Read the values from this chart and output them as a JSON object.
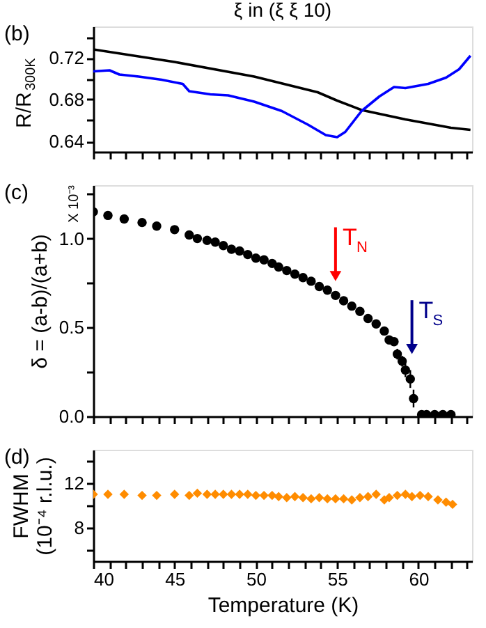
{
  "chart_data": [
    {
      "type": "line",
      "title": "ξ in (ξ ξ 10)",
      "ylabel": "R/R$_{300K}$",
      "annotations": [
        "(b)"
      ],
      "xlim": [
        40,
        63.3
      ],
      "ylim": [
        0.63,
        0.75
      ],
      "tick_labels": "y",
      "grid": false,
      "line_style": "solid",
      "xticks": [
        40,
        {
          "value": 41,
          "label": null
        },
        {
          "value": 42,
          "label": null
        },
        {
          "value": 43,
          "label": null
        },
        {
          "value": 44,
          "label": null
        },
        45,
        {
          "value": 46,
          "label": null
        },
        {
          "value": 47,
          "label": null
        },
        {
          "value": 48,
          "label": null
        },
        {
          "value": 49,
          "label": null
        },
        50,
        {
          "value": 51,
          "label": null
        },
        {
          "value": 52,
          "label": null
        },
        {
          "value": 53,
          "label": null
        },
        {
          "value": 54,
          "label": null
        },
        55,
        {
          "value": 56,
          "label": null
        },
        {
          "value": 57,
          "label": null
        },
        {
          "value": 58,
          "label": null
        },
        {
          "value": 59,
          "label": null
        },
        60,
        {
          "value": 61,
          "label": null
        },
        {
          "value": 62,
          "label": null
        },
        {
          "value": 63,
          "label": null
        }
      ],
      "yticks": [
        0.64,
        {
          "value": 0.66,
          "label": null
        },
        0.68,
        {
          "value": 0.7,
          "label": null
        },
        0.72,
        {
          "value": 0.74,
          "label": null
        }
      ],
      "series": [
        {
          "color": "#000000",
          "x": [
            40,
            45,
            49.9,
            53.8,
            55,
            56.5,
            59.2,
            62,
            63.2
          ],
          "values": [
            0.728,
            0.716,
            0.702,
            0.687,
            0.679,
            0.67,
            0.661,
            0.653,
            0.651
          ]
        },
        {
          "color": "#0000ff",
          "x": [
            40,
            41,
            41.6,
            42.8,
            44.2,
            45.5,
            45.9,
            47.2,
            48.3,
            49.9,
            51.6,
            53.2,
            54.3,
            55,
            55.5,
            56.5,
            57.6,
            58.5,
            59.2,
            60.6,
            61.7,
            62.5,
            63.2
          ],
          "values": [
            0.707,
            0.708,
            0.704,
            0.702,
            0.699,
            0.695,
            0.688,
            0.685,
            0.684,
            0.678,
            0.669,
            0.656,
            0.646,
            0.644,
            0.649,
            0.669,
            0.683,
            0.692,
            0.691,
            0.695,
            0.701,
            0.709,
            0.722
          ]
        }
      ]
    },
    {
      "type": "scatter",
      "ylabel": "δ = (a-b)/(a+b)",
      "annotations": [
        "(c)",
        "X 10⁻³",
        {
          "text": "T$_{N}$",
          "x": 54.9,
          "y": 0.75
        },
        {
          "text": "T$_{S}$",
          "x": 59.6,
          "y": 0.34
        }
      ],
      "xlim": [
        40,
        63.3
      ],
      "ylim": [
        0,
        1.3
      ],
      "tick_labels": "y",
      "grid": false,
      "marker": "circle",
      "xticks": [
        40,
        {
          "value": 41,
          "label": null
        },
        {
          "value": 42,
          "label": null
        },
        {
          "value": 43,
          "label": null
        },
        {
          "value": 44,
          "label": null
        },
        45,
        {
          "value": 46,
          "label": null
        },
        {
          "value": 47,
          "label": null
        },
        {
          "value": 48,
          "label": null
        },
        {
          "value": 49,
          "label": null
        },
        50,
        {
          "value": 51,
          "label": null
        },
        {
          "value": 52,
          "label": null
        },
        {
          "value": 53,
          "label": null
        },
        {
          "value": 54,
          "label": null
        },
        55,
        {
          "value": 56,
          "label": null
        },
        {
          "value": 57,
          "label": null
        },
        {
          "value": 58,
          "label": null
        },
        {
          "value": 59,
          "label": null
        },
        60,
        {
          "value": 61,
          "label": null
        },
        {
          "value": 62,
          "label": null
        },
        {
          "value": 63,
          "label": null
        }
      ],
      "yticks": [
        {
          "value": 0,
          "label": "0.0"
        },
        {
          "value": 0.25,
          "label": null
        },
        0.5,
        {
          "value": 0.75,
          "label": null
        },
        {
          "value": 1,
          "label": "1.0"
        },
        {
          "value": 1.25,
          "label": null
        }
      ],
      "series": [
        {
          "color": "#000000",
          "x": [
            40,
            40.9,
            41.9,
            43,
            43.9,
            45,
            45.9,
            46.4,
            47,
            47.5,
            48,
            48.5,
            49,
            49.5,
            50,
            50.5,
            51,
            51.4,
            51.9,
            52.4,
            52.9,
            53.4,
            53.9,
            54.4,
            54.9,
            55.4,
            55.9,
            56.4,
            56.9,
            57.4,
            57.9,
            58.2,
            58.5,
            58.7,
            59,
            59.2,
            59.5,
            59.7,
            60.2,
            60.5,
            61,
            61.5,
            62
          ],
          "values": [
            1.15,
            1.13,
            1.11,
            1.09,
            1.07,
            1.05,
            1.02,
            1.0,
            0.99,
            0.98,
            0.96,
            0.94,
            0.93,
            0.91,
            0.89,
            0.88,
            0.86,
            0.84,
            0.82,
            0.8,
            0.78,
            0.76,
            0.73,
            0.71,
            0.68,
            0.65,
            0.62,
            0.59,
            0.55,
            0.52,
            0.48,
            0.43,
            0.42,
            0.35,
            0.31,
            0.26,
            0.21,
            0.1,
            0.01,
            0.01,
            0.01,
            0.01,
            0.01
          ],
          "errors": [
            null,
            null,
            null,
            null,
            null,
            null,
            null,
            null,
            null,
            null,
            null,
            null,
            null,
            null,
            null,
            null,
            null,
            null,
            null,
            null,
            null,
            null,
            null,
            null,
            null,
            null,
            null,
            null,
            null,
            null,
            null,
            null,
            null,
            0.03,
            0.03,
            0.04,
            0.05,
            0.05,
            null,
            null,
            null,
            null,
            null
          ]
        }
      ]
    },
    {
      "type": "scatter",
      "ylabel": "FWHM\n(10⁻⁴ r.l.u.)",
      "xlabel": "Temperature (K)",
      "annotations": [
        "(d)"
      ],
      "xlim": [
        40,
        63.3
      ],
      "ylim": [
        5,
        15
      ],
      "grid": false,
      "marker": "diamond",
      "xticks": [
        40,
        {
          "value": 41,
          "label": null
        },
        {
          "value": 42,
          "label": null
        },
        {
          "value": 43,
          "label": null
        },
        {
          "value": 44,
          "label": null
        },
        45,
        {
          "value": 46,
          "label": null
        },
        {
          "value": 47,
          "label": null
        },
        {
          "value": 48,
          "label": null
        },
        {
          "value": 49,
          "label": null
        },
        50,
        {
          "value": 51,
          "label": null
        },
        {
          "value": 52,
          "label": null
        },
        {
          "value": 53,
          "label": null
        },
        {
          "value": 54,
          "label": null
        },
        55,
        {
          "value": 56,
          "label": null
        },
        {
          "value": 57,
          "label": null
        },
        {
          "value": 58,
          "label": null
        },
        {
          "value": 59,
          "label": null
        },
        60,
        {
          "value": 61,
          "label": null
        },
        {
          "value": 62,
          "label": null
        },
        {
          "value": 63,
          "label": null
        }
      ],
      "yticks": [
        {
          "value": 6,
          "label": null
        },
        8,
        {
          "value": 10,
          "label": null
        },
        12,
        {
          "value": 14,
          "label": null
        }
      ],
      "series": [
        {
          "color": "#ff8c00",
          "x": [
            40,
            40.9,
            41.9,
            43,
            43.9,
            45,
            45.9,
            46.4,
            47,
            47.5,
            48,
            48.5,
            49,
            49.5,
            50,
            50.5,
            51,
            51.4,
            51.9,
            52.4,
            52.9,
            53.4,
            53.9,
            54.4,
            54.9,
            55.4,
            55.9,
            56.4,
            56.9,
            57.4,
            57.9,
            58.2,
            58.7,
            59.2,
            59.6,
            60.1,
            60.6,
            61.2,
            61.7,
            62.1
          ],
          "values": [
            11.0,
            11.0,
            11.0,
            10.9,
            10.9,
            11.0,
            10.9,
            11.1,
            11.0,
            11.0,
            11.0,
            11.0,
            11.0,
            11.0,
            10.9,
            10.9,
            10.9,
            10.8,
            10.7,
            10.8,
            10.7,
            10.6,
            10.7,
            10.6,
            10.6,
            10.6,
            10.5,
            10.7,
            10.8,
            11.0,
            10.5,
            10.7,
            10.9,
            11.0,
            10.8,
            10.9,
            10.8,
            10.5,
            10.3,
            10.1
          ]
        }
      ]
    }
  ]
}
